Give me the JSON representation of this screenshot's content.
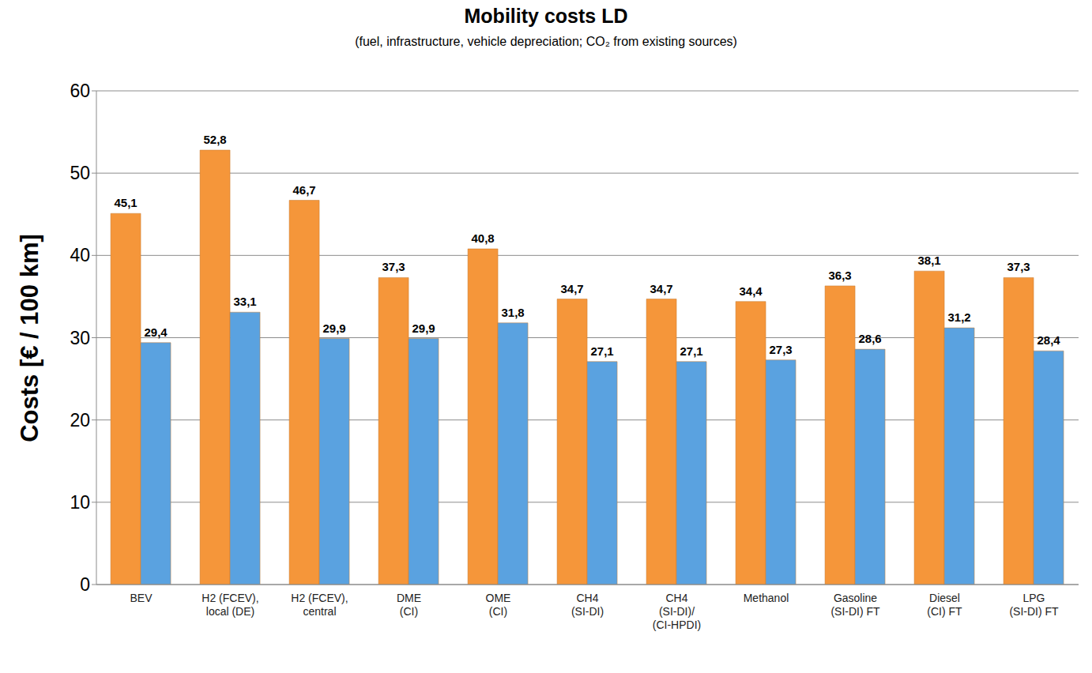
{
  "chart_data": {
    "type": "bar",
    "title": "Mobility costs LD",
    "subtitle": "(fuel, infrastructure, vehicle depreciation; CO₂ from existing sources)",
    "y_label": "Costs [€ / 100 km]",
    "categories": [
      "BEV",
      "H2 (FCEV),\nlocal (DE)",
      "H2 (FCEV),\ncentral",
      "DME\n(CI)",
      "OME\n(CI)",
      "CH4\n(SI-DI)",
      "CH4\n(SI-DI)/\n(CI-HPDI)",
      "Methanol",
      "Gasoline\n(SI-DI) FT",
      "Diesel\n(CI) FT",
      "LPG\n(SI-DI) FT"
    ],
    "series": [
      {
        "color": "#f5963a",
        "values": [
          45.1,
          52.8,
          46.7,
          37.3,
          40.8,
          34.7,
          34.7,
          34.4,
          36.3,
          38.1,
          37.3
        ],
        "value_labels": [
          "45,1",
          "52,8",
          "46,7",
          "37,3",
          "40,8",
          "34,7",
          "34,7",
          "34,4",
          "36,3",
          "38,1",
          "37,3"
        ]
      },
      {
        "color": "#5aa2e0",
        "values": [
          29.4,
          33.1,
          29.9,
          29.9,
          31.8,
          27.1,
          27.1,
          27.3,
          28.6,
          31.2,
          28.4
        ],
        "value_labels": [
          "29,4",
          "33,1",
          "29,9",
          "29,9",
          "31,8",
          "27,1",
          "27,1",
          "27,3",
          "28,6",
          "31,2",
          "28,4"
        ]
      }
    ],
    "ylim": [
      0,
      60
    ],
    "yticks": [
      0,
      10,
      20,
      30,
      40,
      50,
      60
    ],
    "grid": true,
    "data_labels": true
  }
}
